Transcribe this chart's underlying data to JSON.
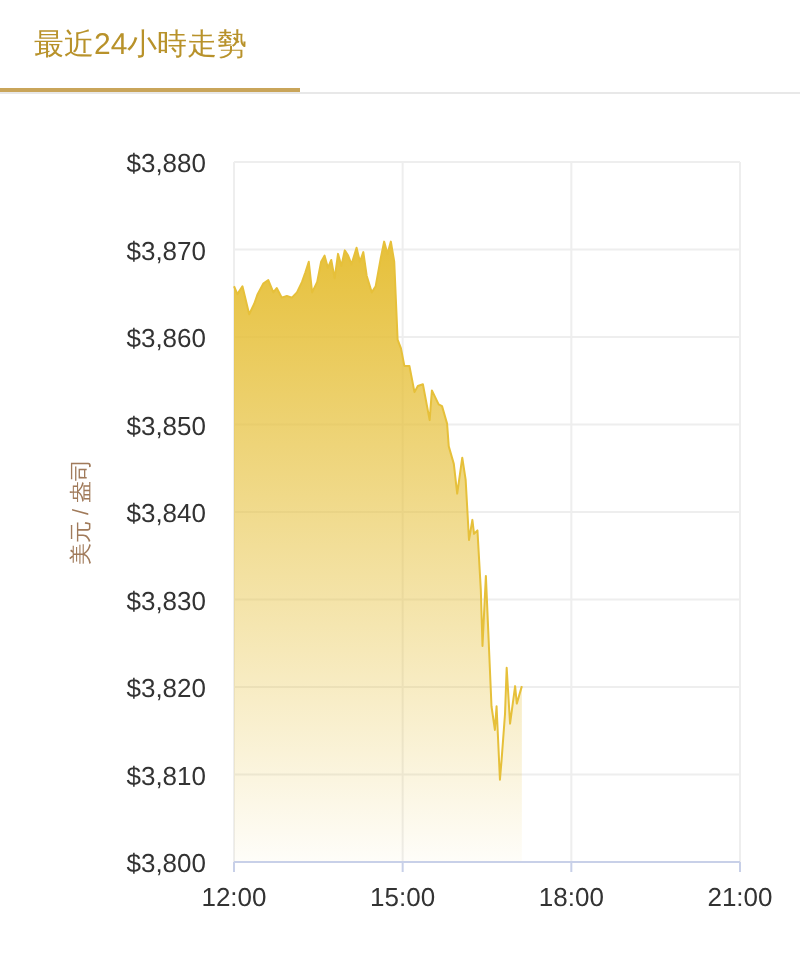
{
  "chart_data": {
    "type": "area",
    "title": "最近24小時走勢",
    "ylabel": "美元 / 盎司",
    "x": [
      12.0,
      12.06,
      12.15,
      12.27,
      12.36,
      12.42,
      12.52,
      12.61,
      12.7,
      12.76,
      12.85,
      12.94,
      13.03,
      13.12,
      13.21,
      13.27,
      13.33,
      13.39,
      13.48,
      13.55,
      13.61,
      13.67,
      13.73,
      13.79,
      13.85,
      13.91,
      13.97,
      14.03,
      14.09,
      14.18,
      14.24,
      14.3,
      14.36,
      14.45,
      14.52,
      14.61,
      14.67,
      14.73,
      14.79,
      14.85,
      14.91,
      14.97,
      15.03,
      15.12,
      15.21,
      15.27,
      15.36,
      15.48,
      15.52,
      15.64,
      15.7,
      15.79,
      15.82,
      15.91,
      15.97,
      16.06,
      16.12,
      16.18,
      16.24,
      16.27,
      16.33,
      16.39,
      16.42,
      16.48,
      16.58,
      16.64,
      16.67,
      16.73,
      16.76,
      16.82,
      16.85,
      16.91,
      17.0,
      17.03,
      17.12
    ],
    "series": [
      {
        "color": "#e6c03a",
        "values": [
          3865.8,
          3864.9,
          3865.8,
          3862.6,
          3863.8,
          3864.9,
          3866.1,
          3866.5,
          3865.1,
          3865.6,
          3864.5,
          3864.7,
          3864.5,
          3865.1,
          3866.3,
          3867.4,
          3868.6,
          3865.1,
          3866.3,
          3868.6,
          3869.3,
          3867.9,
          3868.8,
          3866.7,
          3869.5,
          3868.1,
          3869.9,
          3869.3,
          3868.3,
          3870.2,
          3868.6,
          3869.7,
          3867.0,
          3865.1,
          3865.8,
          3869.0,
          3870.9,
          3869.5,
          3870.9,
          3868.6,
          3859.7,
          3858.7,
          3856.7,
          3856.7,
          3853.7,
          3854.4,
          3854.6,
          3850.5,
          3853.9,
          3852.3,
          3852.1,
          3850.1,
          3847.5,
          3845.5,
          3842.1,
          3846.2,
          3843.7,
          3836.8,
          3839.1,
          3837.5,
          3837.9,
          3831.1,
          3824.7,
          3832.7,
          3817.8,
          3815.1,
          3817.8,
          3809.4,
          3811.7,
          3816.9,
          3822.2,
          3815.8,
          3820.1,
          3818.1,
          3820.1
        ]
      }
    ],
    "xlim": [
      12,
      21
    ],
    "xticks": [
      {
        "value": 12,
        "label": "12:00"
      },
      {
        "value": 15,
        "label": "15:00"
      },
      {
        "value": 18,
        "label": "18:00"
      },
      {
        "value": 21,
        "label": "21:00"
      }
    ],
    "ylim": [
      3800,
      3880
    ],
    "yticks": [
      {
        "value": 3800,
        "label": "$3,800"
      },
      {
        "value": 3810,
        "label": "$3,810"
      },
      {
        "value": 3820,
        "label": "$3,820"
      },
      {
        "value": 3830,
        "label": "$3,830"
      },
      {
        "value": 3840,
        "label": "$3,840"
      },
      {
        "value": 3850,
        "label": "$3,850"
      },
      {
        "value": 3860,
        "label": "$3,860"
      },
      {
        "value": 3870,
        "label": "$3,870"
      },
      {
        "value": 3880,
        "label": "$3,880"
      }
    ],
    "grid": true
  }
}
